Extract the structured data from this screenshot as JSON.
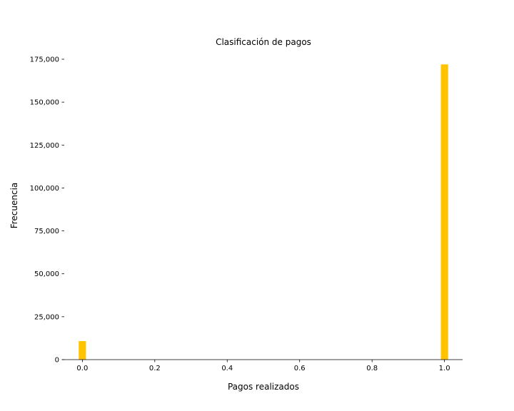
{
  "chart_data": {
    "type": "bar",
    "title": "Clasificación de pagos",
    "xlabel": "Pagos realizados",
    "ylabel": "Frecuencia",
    "x": [
      0,
      1
    ],
    "values": [
      10800,
      172000
    ],
    "bar_width": 0.02,
    "xlim": [
      -0.05,
      1.05
    ],
    "ylim": [
      0,
      175000
    ],
    "xticks": [
      0.0,
      0.2,
      0.4,
      0.6,
      0.8,
      1.0
    ],
    "xtick_labels": [
      "0.0",
      "0.2",
      "0.4",
      "0.6",
      "0.8",
      "1.0"
    ],
    "yticks": [
      0,
      25000,
      50000,
      75000,
      100000,
      125000,
      150000,
      175000
    ],
    "ytick_labels": [
      "0",
      "25,000",
      "50,000",
      "75,000",
      "100,000",
      "125,000",
      "150,000",
      "175,000"
    ],
    "bar_color": "#FFC300",
    "grid": false,
    "legend": "none"
  }
}
